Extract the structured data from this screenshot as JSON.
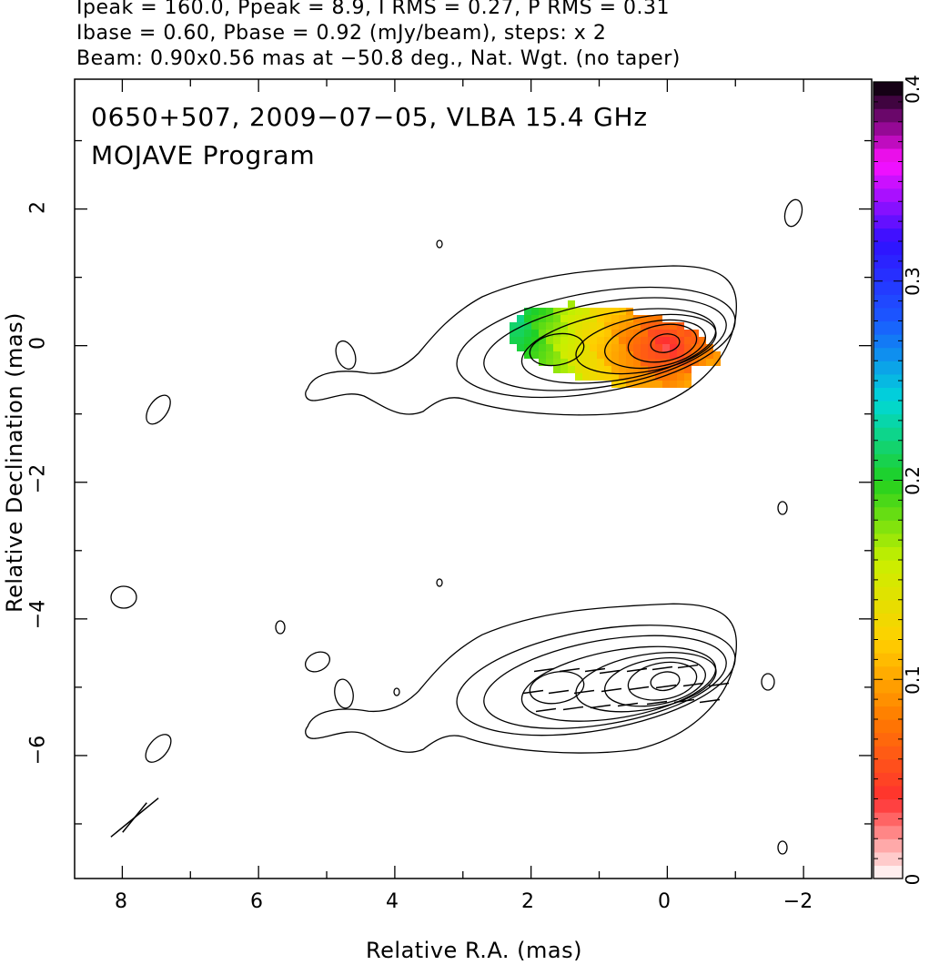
{
  "header": {
    "line1": "Ipeak = 160.0, Ppeak = 8.9, I RMS = 0.27, P RMS = 0.31",
    "line2": "Ibase = 0.60, Pbase = 0.92 (mJy/beam), steps: x 2",
    "line3": "Beam: 0.90x0.56 mas at −50.8 deg., Nat. Wgt. (no taper)"
  },
  "chart_data": [
    {
      "type": "heatmap",
      "title": "0650+507, 2009−07−05, VLBA 15.4 GHz",
      "subtitle": "MOJAVE Program",
      "xlabel": "Relative R.A. (mas)",
      "ylabel": "Relative Declination (mas)",
      "xlim": [
        8.7,
        -3.0
      ],
      "ylim": [
        -7.8,
        3.9
      ],
      "xticks": [
        8,
        6,
        4,
        2,
        0,
        -2
      ],
      "xtick_labels": [
        "8",
        "6",
        "4",
        "2",
        "0",
        "−2"
      ],
      "yticks": [
        2,
        0,
        -2,
        -4,
        -6
      ],
      "ytick_labels": [
        "2",
        "0",
        "−2",
        "−4",
        "−6"
      ],
      "contour_center": [
        0,
        0
      ],
      "peak_position": [
        0,
        0
      ],
      "fractional_polarization_range": [
        0.03,
        0.21
      ],
      "colorbar": {
        "range": [
          0,
          0.4
        ],
        "ticks": [
          0,
          0.1,
          0.2,
          0.3,
          0.4
        ],
        "tick_labels": [
          "0",
          "0.1",
          "0.2",
          "0.3",
          "0.4"
        ],
        "colormap": [
          "#ffffff",
          "#ff3030",
          "#ff7a00",
          "#ffd000",
          "#c8f000",
          "#20d020",
          "#00d8d8",
          "#1a5aff",
          "#3010ff",
          "#ff10ff",
          "#000000"
        ]
      },
      "beam": {
        "major_mas": 0.9,
        "minor_mas": 0.56,
        "pa_deg": -50.8,
        "position": "bottom-left"
      }
    },
    {
      "type": "heatmap",
      "contour_center": [
        0,
        -5
      ],
      "evpa_vectors": true,
      "peak_position": [
        0,
        -5
      ],
      "secondary_peak": [
        1.6,
        -5.1
      ]
    }
  ]
}
